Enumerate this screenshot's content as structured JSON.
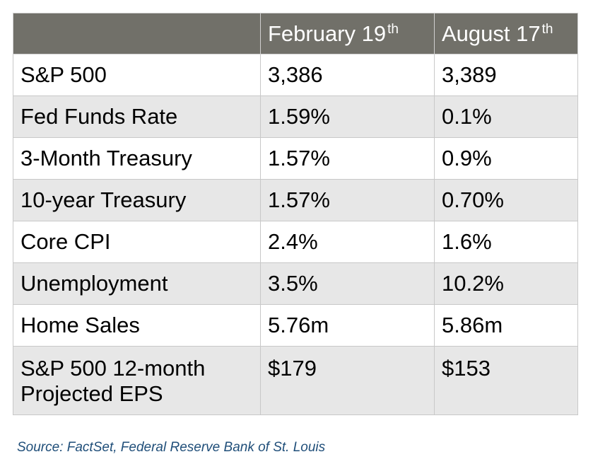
{
  "table": {
    "header": {
      "col1": "",
      "col2": {
        "text": "February 19",
        "sup": "th"
      },
      "col3": {
        "text": "August 17",
        "sup": "th"
      }
    },
    "rows": [
      {
        "label": "S&P 500",
        "feb": "3,386",
        "aug": "3,389"
      },
      {
        "label": "Fed Funds Rate",
        "feb": "1.59%",
        "aug": "0.1%"
      },
      {
        "label": "3-Month Treasury",
        "feb": "1.57%",
        "aug": "0.9%"
      },
      {
        "label": "10-year Treasury",
        "feb": "1.57%",
        "aug": "0.70%"
      },
      {
        "label": "Core CPI",
        "feb": "2.4%",
        "aug": "1.6%"
      },
      {
        "label": "Unemployment",
        "feb": "3.5%",
        "aug": "10.2%"
      },
      {
        "label": "Home Sales",
        "feb": "5.76m",
        "aug": "5.86m"
      },
      {
        "label_line1": "S&P 500 12-month",
        "label_line2": "Projected EPS",
        "feb": "$179",
        "aug": "$153"
      }
    ]
  },
  "source": "Source: FactSet, Federal Reserve Bank of St. Louis",
  "colors": {
    "header_bg": "#717069",
    "header_text": "#ffffff",
    "stripe_bg": "#e7e7e7",
    "source_text": "#1f4e79"
  }
}
